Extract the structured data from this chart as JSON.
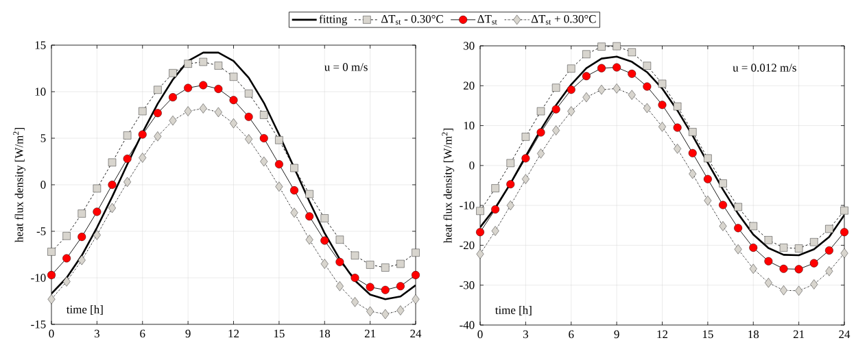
{
  "chart_data": [
    {
      "type": "line",
      "xlabel": "time [h]",
      "ylabel": "heat flux density [W/m$^{2}$]",
      "annotations": [
        "u = 0 m/s"
      ],
      "x": [
        0,
        1,
        2,
        3,
        4,
        5,
        6,
        7,
        8,
        9,
        10,
        11,
        12,
        13,
        14,
        15,
        16,
        17,
        18,
        19,
        20,
        21,
        22,
        23,
        24
      ],
      "xlim": [
        0,
        24
      ],
      "xticks": [
        0,
        3,
        6,
        9,
        12,
        15,
        18,
        21,
        24
      ],
      "ylim": [
        -15,
        15
      ],
      "yticks": [
        -15,
        -10,
        -5,
        0,
        5,
        10,
        15
      ],
      "grid": true,
      "legend": "top",
      "series": [
        {
          "name": "fitting",
          "color": "#000000",
          "marker": "none",
          "line_style": "solid",
          "values": [
            -11.7,
            -10.0,
            -7.6,
            -4.6,
            -1.3,
            2.2,
            5.6,
            8.7,
            11.3,
            13.3,
            14.2,
            14.2,
            13.3,
            11.5,
            8.8,
            5.4,
            1.8,
            -1.8,
            -5.2,
            -8.0,
            -10.3,
            -11.8,
            -12.3,
            -12.0,
            -10.8
          ]
        },
        {
          "name": "ΔT$_{st}$ - 0.30°C",
          "color": "#d8d5ce",
          "marker": "square",
          "line_style": "dashed",
          "values": [
            -7.2,
            -5.5,
            -3.1,
            -0.4,
            2.4,
            5.3,
            7.9,
            10.2,
            12.0,
            13.0,
            13.2,
            12.8,
            11.6,
            9.8,
            7.5,
            4.8,
            1.8,
            -1.0,
            -3.6,
            -5.9,
            -7.6,
            -8.6,
            -8.9,
            -8.5,
            -7.3
          ]
        },
        {
          "name": "ΔT$_{st}$",
          "color": "#ff0000",
          "marker": "circle",
          "line_style": "solid",
          "values": [
            -9.7,
            -7.9,
            -5.6,
            -2.9,
            0,
            2.8,
            5.4,
            7.7,
            9.4,
            10.4,
            10.7,
            10.3,
            9.1,
            7.3,
            5.0,
            2.2,
            -0.6,
            -3.4,
            -6.0,
            -8.3,
            -10.0,
            -11.0,
            -11.3,
            -10.9,
            -9.7
          ]
        },
        {
          "name": "ΔT$_{st}$ + 0.30°C",
          "color": "#d8d5ce",
          "marker": "diamond",
          "line_style": "dotted",
          "values": [
            -12.3,
            -10.4,
            -8.1,
            -5.4,
            -2.5,
            0.3,
            2.9,
            5.2,
            6.9,
            7.9,
            8.2,
            7.8,
            6.6,
            4.9,
            2.5,
            -0.2,
            -3.0,
            -5.9,
            -8.5,
            -10.9,
            -12.6,
            -13.6,
            -13.9,
            -13.5,
            -12.3
          ]
        }
      ]
    },
    {
      "type": "line",
      "xlabel": "time [h]",
      "ylabel": "heat flux density [W/m$^{2}$]",
      "annotations": [
        "u = 0.012 m/s"
      ],
      "x": [
        0,
        1,
        2,
        3,
        4,
        5,
        6,
        7,
        8,
        9,
        10,
        11,
        12,
        13,
        14,
        15,
        16,
        17,
        18,
        19,
        20,
        21,
        22,
        23,
        24
      ],
      "xlim": [
        0,
        24
      ],
      "xticks": [
        0,
        3,
        6,
        9,
        12,
        15,
        18,
        21,
        24
      ],
      "ylim": [
        -40,
        30
      ],
      "yticks": [
        -40,
        -30,
        -20,
        -10,
        0,
        10,
        20,
        30
      ],
      "grid": true,
      "series": [
        {
          "color": "#000000",
          "marker": "none",
          "line_style": "solid",
          "values": [
            -15.5,
            -10.6,
            -4.5,
            2.3,
            9.0,
            15.1,
            20.3,
            24.4,
            26.8,
            27.3,
            26.0,
            23.4,
            19.3,
            13.8,
            7.5,
            0.7,
            -6.0,
            -12.1,
            -17.3,
            -20.7,
            -22.4,
            -22.5,
            -21.0,
            -17.9,
            -12.4
          ]
        },
        {
          "color": "#d8d5ce",
          "marker": "square",
          "line_style": "dashed",
          "values": [
            -11.4,
            -5.7,
            0.6,
            7.2,
            13.6,
            19.5,
            24.3,
            27.9,
            29.8,
            29.9,
            28.4,
            25.0,
            20.5,
            14.8,
            8.4,
            1.8,
            -4.5,
            -10.4,
            -15.2,
            -18.7,
            -20.6,
            -20.8,
            -19.2,
            -15.9,
            -11.3
          ]
        },
        {
          "color": "#ff0000",
          "marker": "circle",
          "line_style": "solid",
          "values": [
            -16.7,
            -11.0,
            -4.7,
            1.8,
            8.3,
            14.1,
            19.0,
            22.4,
            24.4,
            24.6,
            23.0,
            19.8,
            15.2,
            9.5,
            3.1,
            -3.4,
            -9.9,
            -15.7,
            -20.6,
            -24.0,
            -25.9,
            -26.0,
            -24.5,
            -21.3,
            -16.7
          ]
        },
        {
          "color": "#d8d5ce",
          "marker": "diamond",
          "line_style": "dotted",
          "values": [
            -22.2,
            -16.4,
            -10.0,
            -3.4,
            3.0,
            8.8,
            13.6,
            17.1,
            19.0,
            19.3,
            17.7,
            14.4,
            9.7,
            4.2,
            -2.1,
            -8.8,
            -15.2,
            -21.0,
            -25.9,
            -29.4,
            -31.3,
            -31.4,
            -29.8,
            -26.5,
            -22.0
          ]
        }
      ]
    }
  ]
}
